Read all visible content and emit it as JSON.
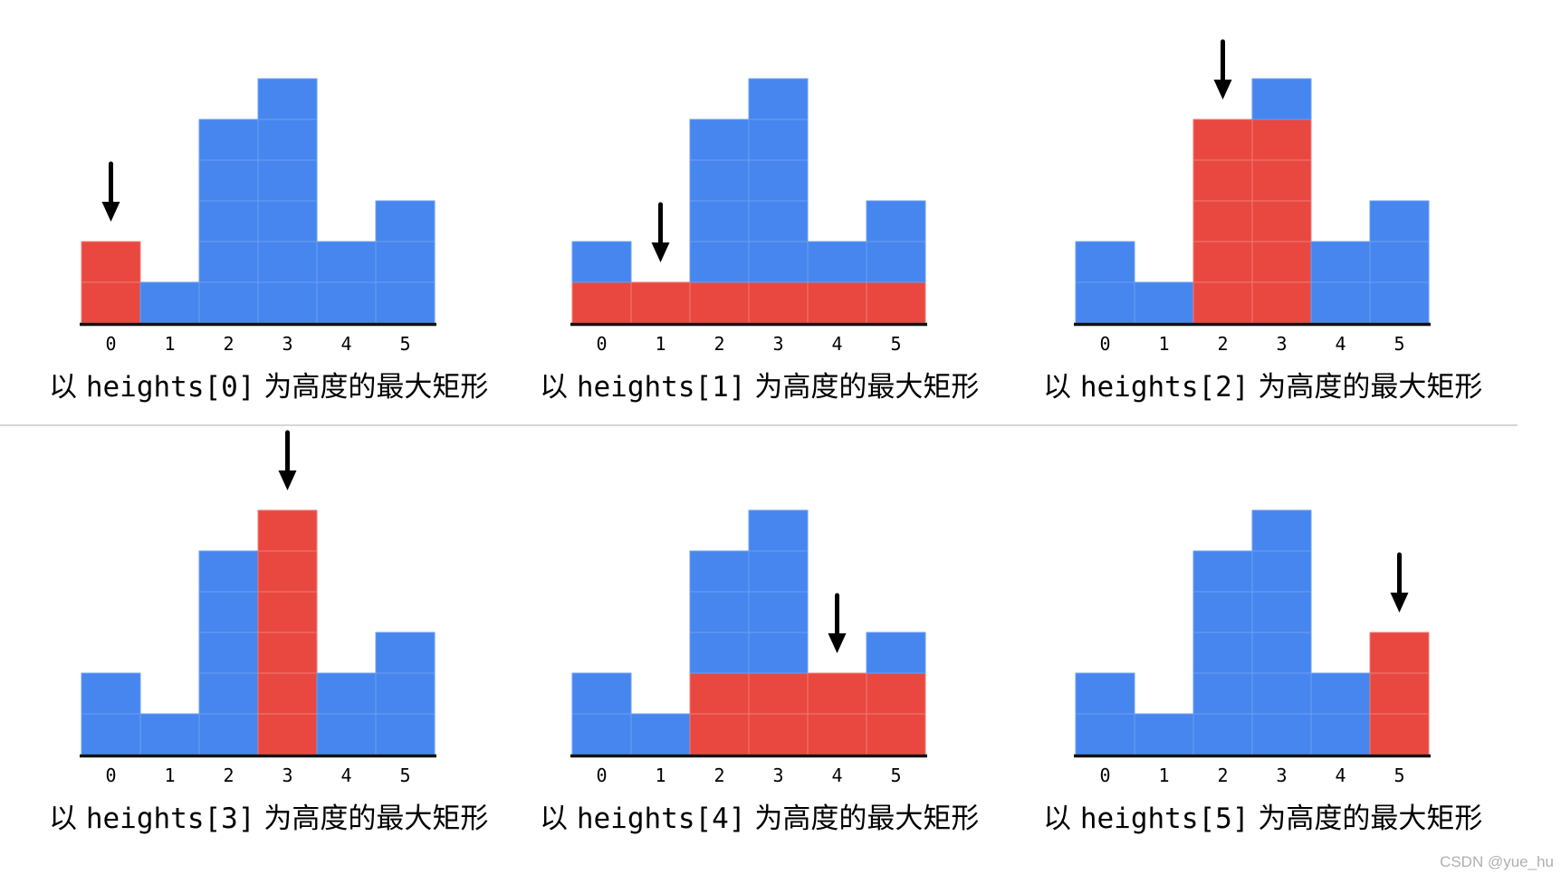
{
  "colors": {
    "bar": "#4686ee",
    "highlight": "#e84840",
    "cell_line": "#6e9ef2",
    "cell_line_red": "#ef7c75",
    "axis": "#111111",
    "arrow": "#000000",
    "divider": "#c8c8c8"
  },
  "chart_data": {
    "type": "bar",
    "categories": [
      "0",
      "1",
      "2",
      "3",
      "4",
      "5"
    ],
    "values": [
      2,
      1,
      5,
      6,
      2,
      3
    ],
    "panels": [
      {
        "pivot": 0,
        "span": [
          0,
          0
        ],
        "height": 2,
        "caption": {
          "prefix": "以 ",
          "code": "heights[0]",
          "suffix": " 为高度的最大矩形"
        }
      },
      {
        "pivot": 1,
        "span": [
          0,
          5
        ],
        "height": 1,
        "caption": {
          "prefix": "以 ",
          "code": "heights[1]",
          "suffix": " 为高度的最大矩形"
        }
      },
      {
        "pivot": 2,
        "span": [
          2,
          3
        ],
        "height": 5,
        "caption": {
          "prefix": "以 ",
          "code": "heights[2]",
          "suffix": " 为高度的最大矩形"
        }
      },
      {
        "pivot": 3,
        "span": [
          3,
          3
        ],
        "height": 6,
        "caption": {
          "prefix": "以 ",
          "code": "heights[3]",
          "suffix": " 为高度的最大矩形"
        }
      },
      {
        "pivot": 4,
        "span": [
          2,
          5
        ],
        "height": 2,
        "caption": {
          "prefix": "以 ",
          "code": "heights[4]",
          "suffix": " 为高度的最大矩形"
        }
      },
      {
        "pivot": 5,
        "span": [
          5,
          5
        ],
        "height": 3,
        "caption": {
          "prefix": "以 ",
          "code": "heights[5]",
          "suffix": " 为高度的最大矩形"
        }
      }
    ]
  },
  "watermark": "CSDN @yue_hu"
}
